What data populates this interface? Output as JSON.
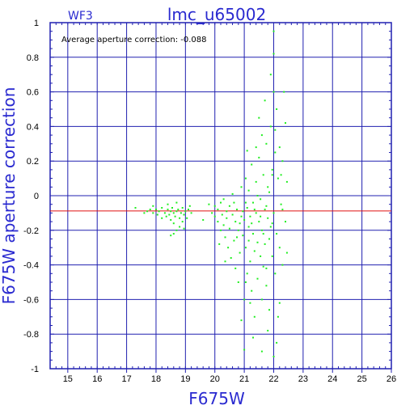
{
  "chart_data": {
    "type": "scatter",
    "panel_label": "WF3",
    "title": "lmc_u65002",
    "annotation": "Average aperture correction: -0.088",
    "xlabel": "F675W",
    "ylabel": "F675W aperture correction",
    "xlim": [
      14.4,
      26
    ],
    "ylim": [
      -1,
      1
    ],
    "x_ticks": [
      15,
      16,
      17,
      18,
      19,
      20,
      21,
      22,
      23,
      24,
      25,
      26
    ],
    "y_ticks": [
      -1,
      -0.8,
      -0.6,
      -0.4,
      -0.2,
      0,
      0.2,
      0.4,
      0.6,
      0.8,
      1
    ],
    "grid": true,
    "reference_line": {
      "y": -0.088,
      "color": "#e01010"
    },
    "colors": {
      "grid": "#2020b0",
      "points": "#22ee22",
      "labels": "#2a2ad0"
    },
    "points": [
      [
        17.3,
        -0.07
      ],
      [
        17.6,
        -0.1
      ],
      [
        17.7,
        -0.09
      ],
      [
        17.8,
        -0.08
      ],
      [
        17.9,
        -0.1
      ],
      [
        18.0,
        -0.08
      ],
      [
        18.05,
        -0.11
      ],
      [
        18.1,
        -0.09
      ],
      [
        18.2,
        -0.07
      ],
      [
        18.3,
        -0.1
      ],
      [
        18.35,
        -0.12
      ],
      [
        18.4,
        -0.08
      ],
      [
        18.45,
        -0.11
      ],
      [
        18.5,
        -0.09
      ],
      [
        18.5,
        -0.14
      ],
      [
        18.55,
        -0.07
      ],
      [
        18.6,
        -0.1
      ],
      [
        18.6,
        -0.16
      ],
      [
        18.65,
        -0.12
      ],
      [
        18.7,
        -0.09
      ],
      [
        18.7,
        -0.2
      ],
      [
        18.75,
        -0.08
      ],
      [
        18.8,
        -0.13
      ],
      [
        18.8,
        -0.18
      ],
      [
        18.85,
        -0.1
      ],
      [
        18.9,
        -0.07
      ],
      [
        18.9,
        -0.15
      ],
      [
        18.95,
        -0.11
      ],
      [
        19.0,
        -0.09
      ],
      [
        19.05,
        -0.13
      ],
      [
        19.1,
        -0.08
      ],
      [
        19.2,
        -0.1
      ],
      [
        18.6,
        -0.22
      ],
      [
        18.4,
        -0.05
      ],
      [
        18.7,
        -0.04
      ],
      [
        18.2,
        -0.13
      ],
      [
        17.9,
        -0.06
      ],
      [
        18.95,
        -0.19
      ],
      [
        18.5,
        -0.23
      ],
      [
        19.15,
        -0.06
      ],
      [
        19.9,
        -0.1
      ],
      [
        20.0,
        -0.12
      ],
      [
        20.0,
        -0.06
      ],
      [
        20.1,
        -0.15
      ],
      [
        20.1,
        -0.08
      ],
      [
        20.2,
        -0.2
      ],
      [
        20.2,
        -0.04
      ],
      [
        20.25,
        -0.11
      ],
      [
        20.3,
        -0.17
      ],
      [
        20.3,
        -0.02
      ],
      [
        20.35,
        -0.24
      ],
      [
        20.4,
        -0.09
      ],
      [
        20.4,
        -0.13
      ],
      [
        20.45,
        -0.3
      ],
      [
        20.5,
        -0.06
      ],
      [
        20.5,
        -0.19
      ],
      [
        20.55,
        -0.36
      ],
      [
        20.6,
        -0.11
      ],
      [
        20.6,
        0.01
      ],
      [
        20.65,
        -0.26
      ],
      [
        20.7,
        -0.15
      ],
      [
        20.7,
        -0.42
      ],
      [
        20.75,
        -0.08
      ],
      [
        20.8,
        -0.2
      ],
      [
        20.8,
        -0.5
      ],
      [
        20.85,
        -0.33
      ],
      [
        20.9,
        -0.12
      ],
      [
        20.9,
        0.05
      ],
      [
        20.95,
        -0.23
      ],
      [
        21.0,
        -0.14
      ],
      [
        21.0,
        -0.6
      ],
      [
        21.0,
        -0.89
      ],
      [
        21.05,
        -0.3
      ],
      [
        21.05,
        0.1
      ],
      [
        21.1,
        -0.07
      ],
      [
        21.1,
        -0.45
      ],
      [
        21.15,
        -0.18
      ],
      [
        21.15,
        0.03
      ],
      [
        21.2,
        -0.38
      ],
      [
        21.2,
        -0.12
      ],
      [
        21.25,
        -0.55
      ],
      [
        21.25,
        0.18
      ],
      [
        21.3,
        -0.22
      ],
      [
        21.3,
        -0.04
      ],
      [
        21.35,
        -0.32
      ],
      [
        21.35,
        -0.7
      ],
      [
        21.4,
        -0.1
      ],
      [
        21.4,
        0.08
      ],
      [
        21.45,
        -0.27
      ],
      [
        21.45,
        -0.48
      ],
      [
        21.5,
        -0.15
      ],
      [
        21.5,
        0.22
      ],
      [
        21.55,
        -0.35
      ],
      [
        21.55,
        -0.02
      ],
      [
        21.6,
        -0.6
      ],
      [
        21.6,
        -0.2
      ],
      [
        21.65,
        0.12
      ],
      [
        21.65,
        -0.41
      ],
      [
        21.7,
        -0.08
      ],
      [
        21.7,
        -0.28
      ],
      [
        21.75,
        0.3
      ],
      [
        21.75,
        -0.52
      ],
      [
        21.8,
        -0.13
      ],
      [
        21.8,
        0.05
      ],
      [
        21.85,
        -0.25
      ],
      [
        21.85,
        -0.66
      ],
      [
        21.9,
        -0.18
      ],
      [
        21.9,
        0.4
      ],
      [
        21.95,
        -0.35
      ],
      [
        21.95,
        0.15
      ],
      [
        22.0,
        -0.1
      ],
      [
        22.0,
        0.6
      ],
      [
        22.0,
        0.82
      ],
      [
        22.0,
        0.95
      ],
      [
        22.05,
        -0.45
      ],
      [
        22.05,
        0.25
      ],
      [
        22.1,
        -0.22
      ],
      [
        22.1,
        0.5
      ],
      [
        22.15,
        -0.7
      ],
      [
        22.15,
        0.1
      ],
      [
        22.2,
        -0.3
      ],
      [
        22.2,
        0.28
      ],
      [
        22.25,
        -0.05
      ],
      [
        22.3,
        -0.4
      ],
      [
        22.3,
        0.2
      ],
      [
        22.35,
        0.6
      ],
      [
        22.4,
        -0.15
      ],
      [
        22.4,
        0.42
      ],
      [
        22.45,
        -0.33
      ],
      [
        22.45,
        0.08
      ],
      [
        21.05,
        -0.04
      ],
      [
        21.15,
        -0.26
      ],
      [
        21.25,
        -0.16
      ],
      [
        21.35,
        -0.08
      ],
      [
        21.45,
        0.0
      ],
      [
        21.55,
        -0.12
      ],
      [
        21.65,
        -0.22
      ],
      [
        21.75,
        -0.06
      ],
      [
        21.85,
        0.02
      ],
      [
        21.95,
        -0.16
      ],
      [
        20.95,
        -0.09
      ],
      [
        20.85,
        -0.16
      ],
      [
        20.75,
        -0.24
      ],
      [
        20.65,
        -0.04
      ],
      [
        21.7,
        0.55
      ],
      [
        21.6,
        0.35
      ],
      [
        21.5,
        0.45
      ],
      [
        21.9,
        0.7
      ],
      [
        22.05,
        0.38
      ],
      [
        22.1,
        -0.85
      ],
      [
        22.0,
        -0.93
      ],
      [
        21.8,
        -0.78
      ],
      [
        21.3,
        -0.82
      ],
      [
        21.6,
        -0.9
      ],
      [
        22.2,
        -0.62
      ],
      [
        21.4,
        0.28
      ],
      [
        21.2,
        -0.62
      ],
      [
        20.9,
        -0.72
      ],
      [
        21.1,
        0.26
      ],
      [
        22.3,
        -0.08
      ],
      [
        19.6,
        -0.14
      ],
      [
        19.8,
        -0.05
      ],
      [
        20.15,
        -0.28
      ],
      [
        20.35,
        -0.38
      ],
      [
        21.95,
        0.12
      ],
      [
        21.05,
        -0.5
      ],
      [
        21.75,
        -0.42
      ],
      [
        22.25,
        0.12
      ]
    ]
  }
}
